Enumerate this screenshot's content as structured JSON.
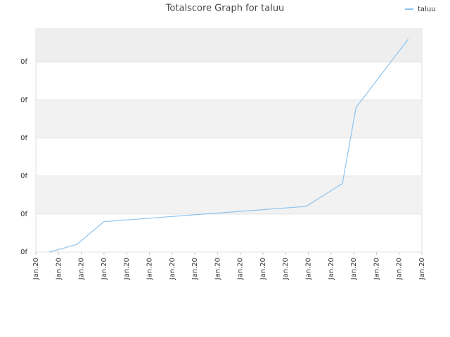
{
  "chart_data": {
    "type": "line",
    "title": "Totalscore Graph for taluu",
    "x": [
      0.6,
      1.8,
      3.0,
      11.9,
      13.5,
      14.1,
      16.4
    ],
    "series": [
      {
        "name": "taluu",
        "color": "#8ec4ef",
        "values": [
          0,
          0.2,
          0.8,
          1.2,
          1.8,
          3.8,
          5.6
        ]
      }
    ],
    "xlim": [
      0,
      17
    ],
    "xticks": [
      {
        "value": 0,
        "label": "Jan.20"
      },
      {
        "value": 1,
        "label": "Jan.20"
      },
      {
        "value": 2,
        "label": "Jan.20"
      },
      {
        "value": 3,
        "label": "Jan.20"
      },
      {
        "value": 4,
        "label": "Jan.20"
      },
      {
        "value": 5,
        "label": "Jan.20"
      },
      {
        "value": 6,
        "label": "Jan.20"
      },
      {
        "value": 7,
        "label": "Jan.20"
      },
      {
        "value": 8,
        "label": "Jan.20"
      },
      {
        "value": 9,
        "label": "Jan.20"
      },
      {
        "value": 10,
        "label": "Jan.20"
      },
      {
        "value": 11,
        "label": "Jan.20"
      },
      {
        "value": 12,
        "label": "Jan.20"
      },
      {
        "value": 13,
        "label": "Jan.20"
      },
      {
        "value": 14,
        "label": "Jan.20"
      },
      {
        "value": 15,
        "label": "Jan.20"
      },
      {
        "value": 16,
        "label": "Jan.20"
      },
      {
        "value": 17,
        "label": "Jan.20"
      }
    ],
    "ylim": [
      0,
      5.87
    ],
    "yticks": [
      {
        "value": 0,
        "label": "0f"
      },
      {
        "value": 1,
        "label": "0f"
      },
      {
        "value": 2,
        "label": "0f"
      },
      {
        "value": 3,
        "label": "0f"
      },
      {
        "value": 4,
        "label": "0f"
      },
      {
        "value": 5,
        "label": "0f"
      }
    ],
    "grid": true,
    "legend": "top-right"
  }
}
